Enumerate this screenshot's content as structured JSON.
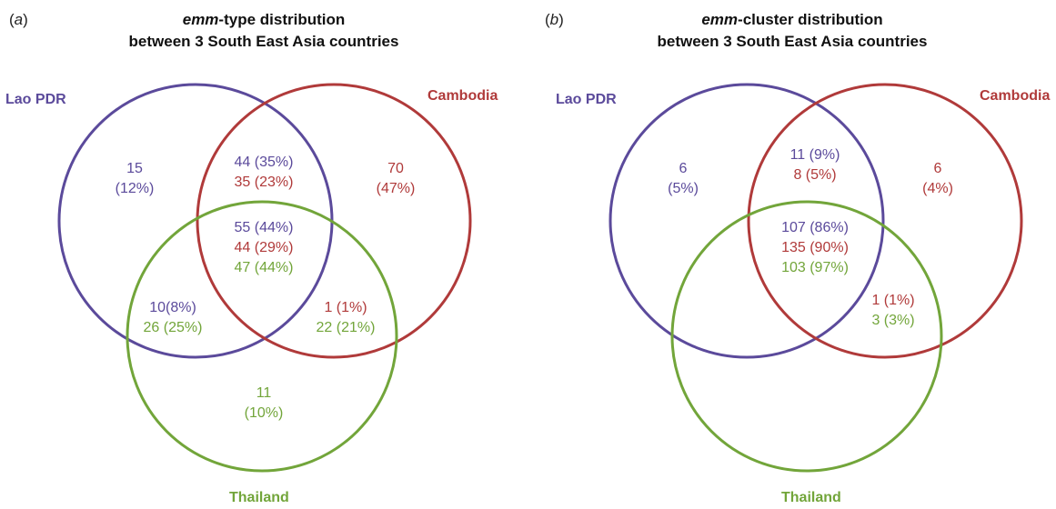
{
  "colors": {
    "lao": "#5b4a9b",
    "cambodia": "#b03a3a",
    "thailand": "#72a53a"
  },
  "panels": {
    "a": {
      "letter": "a",
      "title_emph": "emm",
      "title_rest": "-type distribution",
      "title_line2": "between 3 South East Asia countries",
      "labels": {
        "lao": "Lao PDR",
        "cambodia": "Cambodia",
        "thailand": "Thailand"
      },
      "regions": {
        "lao_only": {
          "count": "15",
          "pct": "(12%)"
        },
        "cambodia_only": {
          "count": "70",
          "pct": "(47%)"
        },
        "thailand_only": {
          "count": "11",
          "pct": "(10%)"
        },
        "lao_cambodia": {
          "lao": "44 (35%)",
          "cambodia": "35 (23%)"
        },
        "all": {
          "lao": "55 (44%)",
          "cambodia": "44 (29%)",
          "thailand": "47 (44%)"
        },
        "lao_thailand": {
          "lao": "10(8%)",
          "thailand": "26 (25%)"
        },
        "cambodia_thailand": {
          "cambodia": "1 (1%)",
          "thailand": "22 (21%)"
        }
      }
    },
    "b": {
      "letter": "b",
      "title_emph": "emm",
      "title_rest": "-cluster distribution",
      "title_line2": "between 3 South East Asia countries",
      "labels": {
        "lao": "Lao PDR",
        "cambodia": "Cambodia",
        "thailand": "Thailand"
      },
      "regions": {
        "lao_only": {
          "count": "6",
          "pct": "(5%)"
        },
        "cambodia_only": {
          "count": "6",
          "pct": "(4%)"
        },
        "lao_cambodia": {
          "lao": "11 (9%)",
          "cambodia": "8 (5%)"
        },
        "all": {
          "lao": "107 (86%)",
          "cambodia": "135 (90%)",
          "thailand": "103 (97%)"
        },
        "cambodia_thailand": {
          "cambodia": "1 (1%)",
          "thailand": "3 (3%)"
        }
      }
    }
  }
}
